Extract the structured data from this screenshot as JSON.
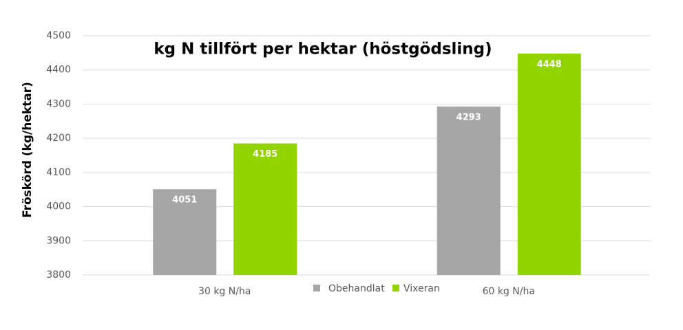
{
  "chart_data": {
    "type": "bar",
    "title": "kg N tillfört per hektar (höstgödsling)",
    "y_label": "Fröskörd (kg/hektar)",
    "categories": [
      "30 kg N/ha",
      "60 kg N/ha"
    ],
    "series": [
      {
        "name": "Obehandlat",
        "color": "#a6a6a6",
        "values": [
          4051,
          4293
        ]
      },
      {
        "name": "Vixeran",
        "color": "#92d400",
        "values": [
          4185,
          4448
        ]
      }
    ],
    "ylim": [
      3800,
      4500
    ],
    "yticks": [
      3800,
      3900,
      4000,
      4100,
      4200,
      4300,
      4400,
      4500
    ],
    "grid": true,
    "legend": "bottom"
  }
}
